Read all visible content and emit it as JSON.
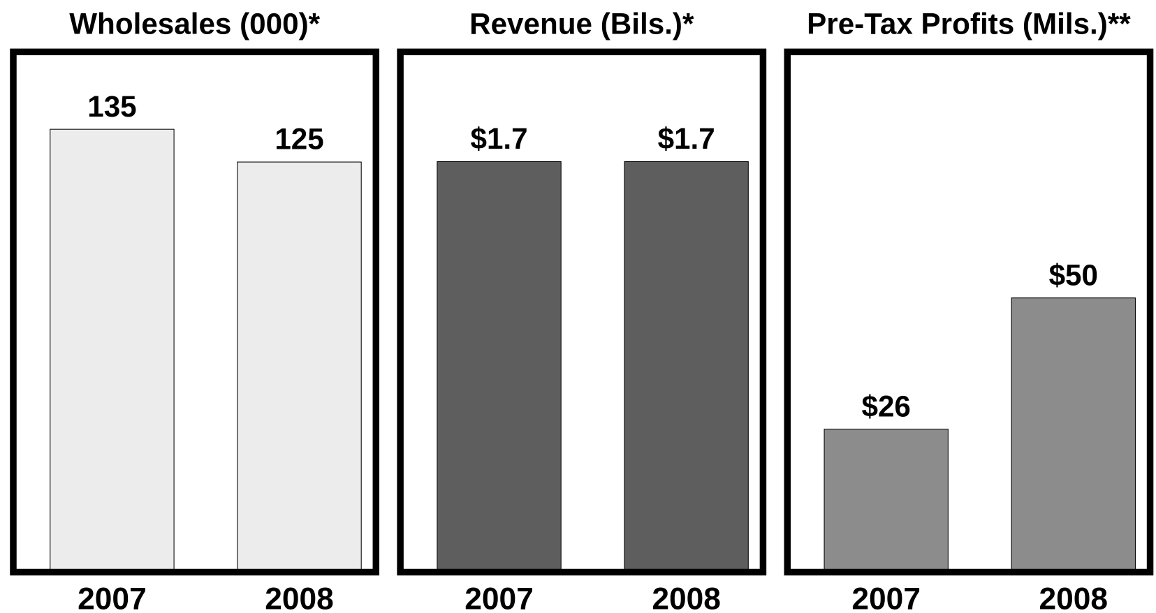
{
  "chart_data": [
    {
      "type": "bar",
      "title": "Wholesales (000)*",
      "categories": [
        "2007",
        "2008"
      ],
      "values": [
        135,
        125
      ],
      "color": "#ececec",
      "ylim": [
        0,
        157.5
      ]
    },
    {
      "type": "bar",
      "title": "Revenue (Bils.)*",
      "categories": [
        "2007",
        "2008"
      ],
      "values": [
        1.7,
        1.7
      ],
      "value_labels": [
        "$1.7",
        "$1.7"
      ],
      "color": "#5e5e5e",
      "ylim": [
        0,
        2.14
      ]
    },
    {
      "type": "bar",
      "title": "Pre-Tax Profits (Mils.)**",
      "categories": [
        "2007",
        "2008"
      ],
      "values": [
        26,
        50
      ],
      "value_labels": [
        "$26",
        "$50"
      ],
      "color": "#8c8c8c",
      "ylim": [
        0,
        94.3
      ]
    }
  ]
}
